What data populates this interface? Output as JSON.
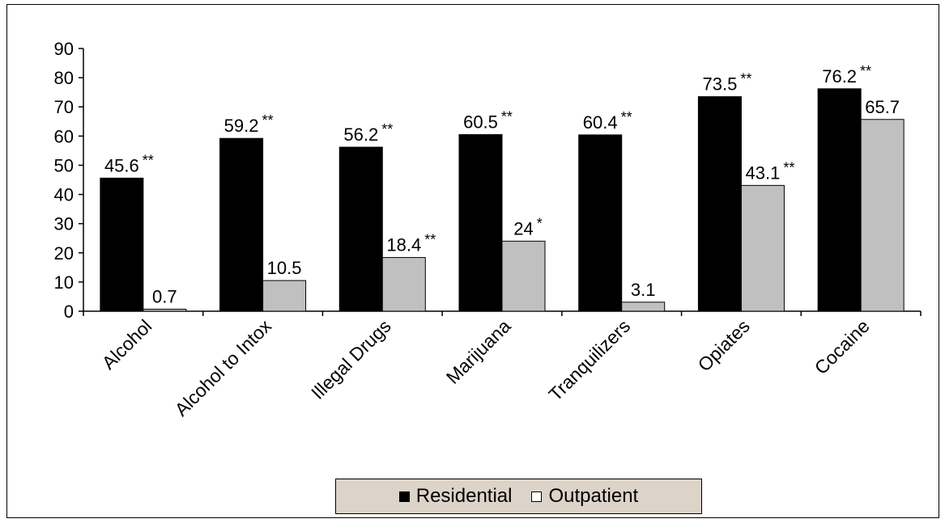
{
  "chart_data": {
    "type": "bar",
    "title": "",
    "xlabel": "",
    "ylabel": "",
    "ylim": [
      0,
      90
    ],
    "yticks": [
      0,
      10,
      20,
      30,
      40,
      50,
      60,
      70,
      80,
      90
    ],
    "grid": false,
    "legend_position": "bottom",
    "categories": [
      "Alcohol",
      "Alcohol to Intox",
      "Illegal Drugs",
      "Marijuana",
      "Tranquilizers",
      "Opiates",
      "Cocaine"
    ],
    "series": [
      {
        "name": "Residential",
        "color": "#000000",
        "values": [
          45.6,
          59.2,
          56.2,
          60.5,
          60.4,
          73.5,
          76.2
        ],
        "labels": [
          "45.6",
          "59.2",
          "56.2",
          "60.5",
          "60.4",
          "73.5",
          "76.2"
        ],
        "significance": [
          "**",
          "**",
          "**",
          "**",
          "**",
          "**",
          "**"
        ]
      },
      {
        "name": "Outpatient",
        "color": "#c0c0c0",
        "values": [
          0.7,
          10.5,
          18.4,
          24,
          3.1,
          43.1,
          65.7
        ],
        "labels": [
          "0.7",
          "10.5",
          "18.4",
          "24",
          "3.1",
          "43.1",
          "65.7"
        ],
        "significance": [
          "",
          "",
          "**",
          "*",
          "",
          "**",
          ""
        ]
      }
    ]
  }
}
